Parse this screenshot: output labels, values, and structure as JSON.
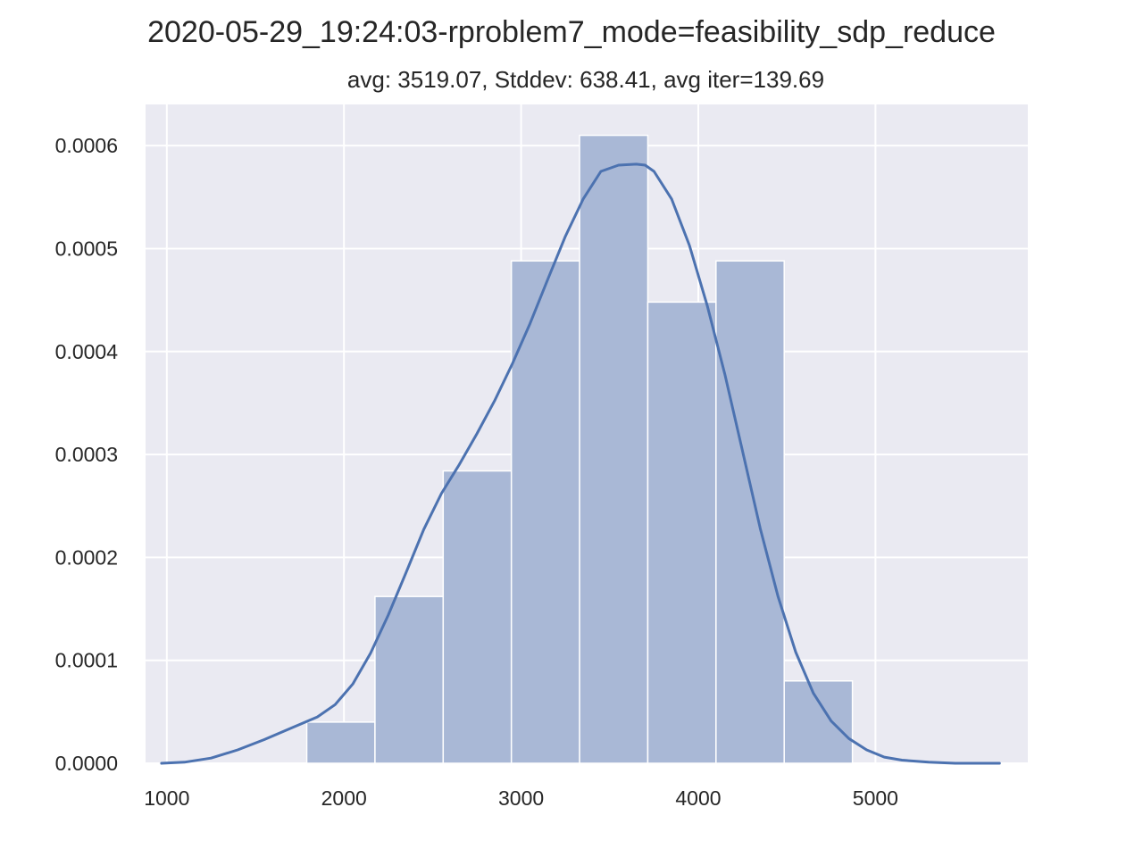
{
  "chart_data": {
    "type": "histogram",
    "title": "2020-05-29_19:24:03-rproblem7_mode=feasibility_sdp_reduce",
    "subtitle": "avg: 3519.07, Stddev: 638.41, avg iter=139.69",
    "xlabel": "",
    "ylabel": "",
    "xlim": [
      880,
      5860
    ],
    "ylim": [
      0,
      0.00064
    ],
    "x_ticks": [
      1000,
      2000,
      3000,
      4000,
      5000
    ],
    "y_ticks": [
      0.0,
      0.0001,
      0.0002,
      0.0003,
      0.0004,
      0.0005,
      0.0006
    ],
    "y_tick_labels": [
      "0.0000",
      "0.0001",
      "0.0002",
      "0.0003",
      "0.0004",
      "0.0005",
      "0.0006"
    ],
    "grid": true,
    "bins": [
      {
        "x0": 1790,
        "x1": 2175,
        "density": 4e-05
      },
      {
        "x0": 2175,
        "x1": 2560,
        "density": 0.000162
      },
      {
        "x0": 2560,
        "x1": 2945,
        "density": 0.000284
      },
      {
        "x0": 2945,
        "x1": 3330,
        "density": 0.000488
      },
      {
        "x0": 3330,
        "x1": 3715,
        "density": 0.00061
      },
      {
        "x0": 3715,
        "x1": 4100,
        "density": 0.000448
      },
      {
        "x0": 4100,
        "x1": 4485,
        "density": 0.000488
      },
      {
        "x0": 4485,
        "x1": 4870,
        "density": 8e-05
      }
    ],
    "kde": {
      "x": [
        970,
        1100,
        1250,
        1400,
        1550,
        1700,
        1850,
        1950,
        2050,
        2150,
        2250,
        2350,
        2450,
        2550,
        2650,
        2750,
        2850,
        2950,
        3050,
        3150,
        3250,
        3350,
        3450,
        3550,
        3650,
        3700,
        3750,
        3850,
        3950,
        4050,
        4150,
        4250,
        4350,
        4450,
        4550,
        4650,
        4750,
        4850,
        4950,
        5050,
        5150,
        5300,
        5450,
        5600,
        5700
      ],
      "y": [
        0.0,
        1e-06,
        5e-06,
        1.3e-05,
        2.3e-05,
        3.4e-05,
        4.5e-05,
        5.7e-05,
        7.7e-05,
        0.000107,
        0.000144,
        0.000185,
        0.000227,
        0.000262,
        0.00029,
        0.00032,
        0.000352,
        0.000388,
        0.000427,
        0.00047,
        0.000512,
        0.000548,
        0.000575,
        0.000581,
        0.000582,
        0.000581,
        0.000575,
        0.000548,
        0.000503,
        0.000445,
        0.000378,
        0.000303,
        0.000228,
        0.000162,
        0.000108,
        6.8e-05,
        4.1e-05,
        2.4e-05,
        1.3e-05,
        6e-06,
        3e-06,
        1e-06,
        0.0,
        0.0,
        0.0
      ]
    },
    "colors": {
      "background": "#eaeaf2",
      "grid": "#ffffff",
      "bar_fill": "#a9b8d6",
      "bar_edge": "#ffffff",
      "kde_line": "#4c72b0"
    }
  }
}
